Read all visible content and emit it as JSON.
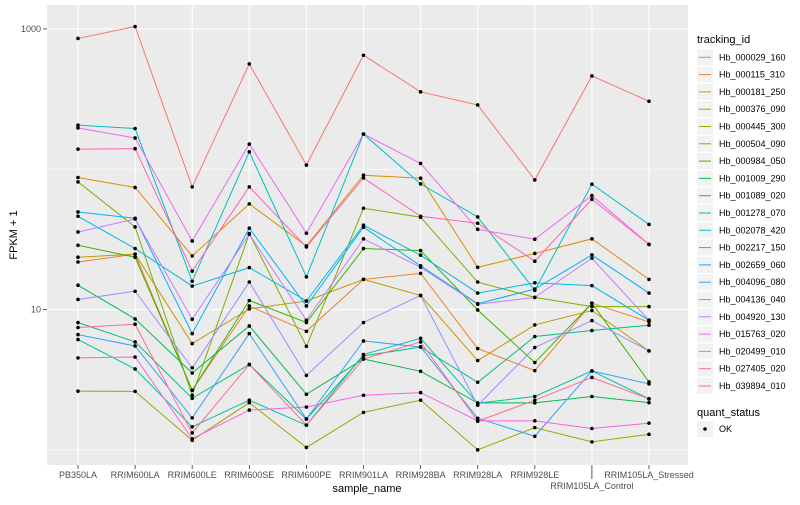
{
  "chart_data": {
    "type": "line",
    "xlabel": "sample_name",
    "ylabel": "FPKM + 1",
    "y_scale": "log10",
    "ylim": [
      0.78,
      1480
    ],
    "y_tick_labels": [
      "1000",
      "10"
    ],
    "y_tick_values": [
      1000,
      10
    ],
    "y_minor_grid": [
      100,
      1
    ],
    "grid": true,
    "points_shown": true,
    "categories": [
      "PB350LA",
      "RRIM600LA",
      "RRIM600LE",
      "RRIM600SE",
      "RRIM600PE",
      "RRIM901LA",
      "RRIM928BA",
      "RRIM928LA",
      "RRIM928LE",
      "RRIM105LA_Control",
      "RRIM105LA_Stressed"
    ],
    "legend": {
      "title": "tracking_id",
      "placement": "right"
    },
    "shape_legend": {
      "title": "quant_status",
      "entries": [
        "OK"
      ]
    },
    "series": [
      {
        "name": "Hb_000029_160",
        "color": "#F8766D",
        "values": [
          855,
          1040,
          74.8,
          563,
          107,
          649,
          356,
          287,
          83.9,
          462,
          305
        ]
      },
      {
        "name": "Hb_000115_310",
        "color": "#EA8331",
        "values": [
          21.8,
          24.8,
          2.66,
          10.6,
          7.0,
          16.4,
          18.1,
          5.27,
          3.67,
          11.1,
          8.16
        ]
      },
      {
        "name": "Hb_000181_250",
        "color": "#D89000",
        "values": [
          87.3,
          74.1,
          24.1,
          56.6,
          28.4,
          90.6,
          86.3,
          20.0,
          25.1,
          31.9,
          16.4
        ]
      },
      {
        "name": "Hb_000376_090",
        "color": "#C09B00",
        "values": [
          23.6,
          24.8,
          5.72,
          10.1,
          11.5,
          16.4,
          12.6,
          4.33,
          7.77,
          9.84,
          5.07
        ]
      },
      {
        "name": "Hb_000445_300",
        "color": "#A3A500",
        "values": [
          2.62,
          2.61,
          1.17,
          2.17,
          1.04,
          1.85,
          2.26,
          1.0,
          1.44,
          1.14,
          1.29
        ]
      },
      {
        "name": "Hb_000504_090",
        "color": "#7CAE00",
        "values": [
          81.2,
          38.8,
          2.45,
          34.8,
          5.47,
          52.7,
          45.5,
          15.7,
          12.2,
          10.5,
          10.5
        ]
      },
      {
        "name": "Hb_000984_050",
        "color": "#39B600",
        "values": [
          28.7,
          23.6,
          2.66,
          11.6,
          8.08,
          27.2,
          26.3,
          9.93,
          4.19,
          11.1,
          3.05
        ]
      },
      {
        "name": "Hb_001009_290",
        "color": "#00BB4E",
        "values": [
          14.9,
          8.57,
          3.53,
          7.64,
          2.49,
          4.44,
          3.63,
          2.16,
          2.16,
          2.4,
          2.17
        ]
      },
      {
        "name": "Hb_001089_020",
        "color": "#00BF7D",
        "values": [
          8.08,
          5.88,
          2.33,
          4.06,
          1.66,
          4.67,
          5.41,
          3.03,
          6.42,
          7.09,
          7.73
        ]
      },
      {
        "name": "Hb_001278_070",
        "color": "#00C1A3",
        "values": [
          6.11,
          3.77,
          1.46,
          2.26,
          1.5,
          4.78,
          6.24,
          2.15,
          2.4,
          3.65,
          2.31
        ]
      },
      {
        "name": "Hb_002078_420",
        "color": "#00BFC4",
        "values": [
          206,
          195,
          15.9,
          133,
          17.1,
          178,
          78.6,
          45.7,
          13.7,
          78.2,
          40.4
        ]
      },
      {
        "name": "Hb_002217_150",
        "color": "#00BAE0",
        "values": [
          46.2,
          27.2,
          14.7,
          19.9,
          11.5,
          39.9,
          24.4,
          13.1,
          15.5,
          14.8,
          8.39
        ]
      },
      {
        "name": "Hb_002659_060",
        "color": "#00B0F6",
        "values": [
          49.6,
          44.7,
          6.74,
          38.0,
          10.6,
          38.6,
          20.5,
          11.0,
          14.0,
          24.5,
          13.1
        ]
      },
      {
        "name": "Hb_004096_080",
        "color": "#35A2FF",
        "values": [
          6.63,
          5.5,
          1.69,
          6.74,
          1.66,
          5.97,
          5.41,
          1.68,
          1.25,
          3.65,
          2.95
        ]
      },
      {
        "name": "Hb_004136_040",
        "color": "#9590FF",
        "values": [
          11.8,
          13.5,
          3.84,
          15.7,
          3.39,
          8.08,
          12.6,
          2.08,
          5.36,
          8.35,
          5.07
        ]
      },
      {
        "name": "Hb_004920_130",
        "color": "#C77CFF",
        "values": [
          35.7,
          44.2,
          8.53,
          34.4,
          8.39,
          31.9,
          20.0,
          10.9,
          12.2,
          23.2,
          8.39
        ]
      },
      {
        "name": "Hb_015763_020",
        "color": "#E76BF3",
        "values": [
          197,
          167,
          30.8,
          151,
          35.0,
          178,
          110,
          37.3,
          31.7,
          64.9,
          29.1
        ]
      },
      {
        "name": "Hb_020499_010",
        "color": "#FA62DB",
        "values": [
          4.52,
          4.59,
          1.2,
          1.92,
          2.02,
          2.45,
          2.56,
          1.61,
          1.61,
          1.42,
          1.55
        ]
      },
      {
        "name": "Hb_027405_020",
        "color": "#FF62BC",
        "values": [
          139,
          140,
          18.8,
          74.8,
          27.9,
          86.7,
          46.2,
          41.2,
          22.1,
          61.1,
          29.1
        ]
      },
      {
        "name": "Hb_039894_010",
        "color": "#FF6C91",
        "values": [
          7.44,
          7.86,
          1.32,
          4.06,
          1.5,
          4.44,
          5.88,
          1.6,
          2.26,
          3.28,
          2.31
        ]
      }
    ]
  }
}
